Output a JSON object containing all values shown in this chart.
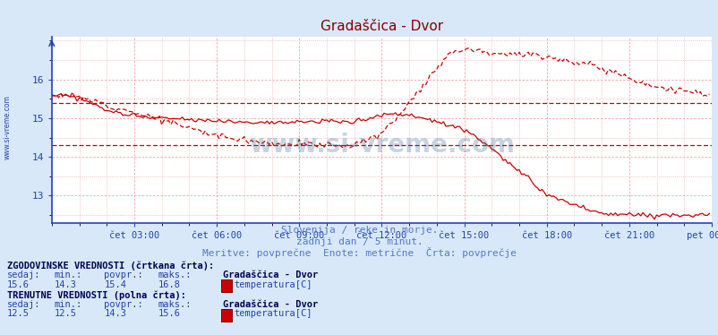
{
  "title": "Gradaščica - Dvor",
  "subtitle1": "Slovenija / reke in morje.",
  "subtitle2": "zadnji dan / 5 minut.",
  "subtitle3": "Meritve: povprečne  Enote: metrične  Črta: povprečje",
  "xlabel_ticks": [
    "čet 03:00",
    "čet 06:00",
    "čet 09:00",
    "čet 12:00",
    "čet 15:00",
    "čet 18:00",
    "čet 21:00",
    "pet 00:00"
  ],
  "ylabel_ticks": [
    13,
    14,
    15,
    16
  ],
  "ylim_low": 12.3,
  "ylim_high": 17.1,
  "bg_color": "#d8e8f8",
  "plot_bg_color": "#ffffff",
  "grid_color": "#f0a0a0",
  "axis_color": "#2244bb",
  "title_color": "#880000",
  "label_color": "#2244aa",
  "line_color": "#cc0000",
  "hist_sedaj": 15.6,
  "hist_min": 14.3,
  "hist_povpr": 15.4,
  "hist_maks": 16.8,
  "curr_sedaj": 12.5,
  "curr_min": 12.5,
  "curr_povpr": 14.3,
  "curr_maks": 15.6,
  "station": "Gradaščica - Dvor",
  "param": "temperatura[C]",
  "watermark": "www.si-vreme.com",
  "left_label": "www.si-vreme.com",
  "n_points": 288
}
